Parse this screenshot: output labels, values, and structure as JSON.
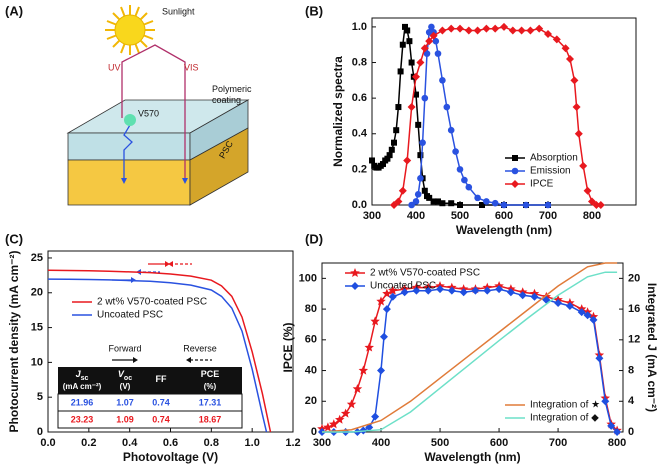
{
  "diagram": {
    "panel": "(A)",
    "labels": {
      "sunlight": "Sunlight",
      "uv": "UV",
      "vis": "VIS",
      "dye": "V570",
      "coating": [
        "Polymeric",
        "coating"
      ],
      "device": "PSC"
    }
  },
  "chart_data": [
    {
      "type": "line",
      "panel": "(B)",
      "x_label": "Wavelength (nm)",
      "y_label": "Normalized spectra",
      "xlim": [
        300,
        900
      ],
      "xticks": [
        300,
        400,
        500,
        600,
        700,
        800
      ],
      "ylim": [
        0,
        1.05
      ],
      "yticks": [
        {
          "value": 0,
          "label": "0.0"
        },
        0.2,
        0.4,
        0.6,
        0.8,
        {
          "value": 1,
          "label": "1.0"
        }
      ],
      "legend": "lower right",
      "series": [
        {
          "name": "Absorption",
          "color": "#000000",
          "marker": "square",
          "x": [
            300,
            305,
            310,
            315,
            320,
            325,
            330,
            335,
            340,
            345,
            350,
            355,
            360,
            365,
            370,
            375,
            380,
            385,
            390,
            395,
            400,
            405,
            410,
            415,
            420,
            425,
            430,
            440,
            450,
            460,
            480,
            500,
            550,
            600,
            650,
            700
          ],
          "values": [
            0.25,
            0.22,
            0.21,
            0.21,
            0.22,
            0.23,
            0.25,
            0.26,
            0.28,
            0.31,
            0.35,
            0.42,
            0.55,
            0.75,
            0.9,
            1.0,
            0.98,
            0.92,
            0.8,
            0.72,
            0.62,
            0.45,
            0.28,
            0.15,
            0.08,
            0.05,
            0.04,
            0.02,
            0.02,
            0.01,
            0.01,
            0,
            0,
            0,
            0,
            0
          ]
        },
        {
          "name": "Emission",
          "color": "#2a52e0",
          "marker": "circle",
          "x": [
            390,
            400,
            405,
            410,
            415,
            420,
            425,
            430,
            435,
            440,
            445,
            450,
            460,
            470,
            480,
            490,
            500,
            510,
            520,
            540,
            560,
            580,
            600,
            650,
            700
          ],
          "values": [
            0,
            0.02,
            0.06,
            0.15,
            0.35,
            0.6,
            0.85,
            0.97,
            1.0,
            0.97,
            0.92,
            0.85,
            0.7,
            0.55,
            0.42,
            0.3,
            0.2,
            0.14,
            0.1,
            0.04,
            0.02,
            0.01,
            0,
            0,
            0
          ]
        },
        {
          "name": "IPCE",
          "color": "#e8191f",
          "marker": "diamond",
          "x": [
            350,
            360,
            370,
            380,
            390,
            400,
            410,
            420,
            430,
            440,
            460,
            480,
            500,
            520,
            540,
            560,
            580,
            600,
            620,
            640,
            660,
            680,
            700,
            720,
            740,
            750,
            760,
            765,
            770,
            780,
            790,
            800,
            810,
            820
          ],
          "values": [
            0,
            0.02,
            0.08,
            0.25,
            0.55,
            0.72,
            0.8,
            0.88,
            0.92,
            0.95,
            0.98,
            0.99,
            0.99,
            0.98,
            0.98,
            0.99,
            0.99,
            1.0,
            0.98,
            0.98,
            0.98,
            0.99,
            0.96,
            0.93,
            0.88,
            0.82,
            0.7,
            0.55,
            0.4,
            0.22,
            0.08,
            0.02,
            0,
            0
          ]
        }
      ]
    },
    {
      "type": "line",
      "panel": "(C)",
      "x_label": "Photovoltage (V)",
      "y_label": "Photocurrent density (mA cm⁻²)",
      "xlim": [
        0,
        1.2
      ],
      "xticks": [
        {
          "value": 0,
          "label": "0.0"
        },
        0.2,
        0.4,
        0.6,
        0.8,
        {
          "value": 1,
          "label": "1.0"
        },
        1.2
      ],
      "ylim": [
        0,
        26
      ],
      "yticks": [
        0,
        5,
        10,
        15,
        20,
        25
      ],
      "legend": "center left",
      "series": [
        {
          "name": "2 wt% V570-coated PSC",
          "color": "#e8191f",
          "marker": "none",
          "x": [
            0,
            0.1,
            0.2,
            0.3,
            0.4,
            0.5,
            0.6,
            0.7,
            0.8,
            0.85,
            0.9,
            0.95,
            1.0,
            1.05,
            1.09
          ],
          "values": [
            23.23,
            23.2,
            23.15,
            23.1,
            23.0,
            22.9,
            22.7,
            22.4,
            21.8,
            21.0,
            19.5,
            16.5,
            11.5,
            5.5,
            0
          ]
        },
        {
          "name": "Uncoated PSC",
          "color": "#2a52e0",
          "marker": "none",
          "x": [
            0,
            0.1,
            0.2,
            0.3,
            0.4,
            0.5,
            0.6,
            0.7,
            0.8,
            0.85,
            0.9,
            0.95,
            1.0,
            1.05,
            1.07
          ],
          "values": [
            21.96,
            21.95,
            21.9,
            21.85,
            21.75,
            21.65,
            21.45,
            21.1,
            20.4,
            19.5,
            17.8,
            14.5,
            9.0,
            2.5,
            0
          ]
        }
      ],
      "annotations": {
        "forward": "Forward",
        "reverse": "Reverse"
      },
      "table": {
        "header": [
          {
            "symbol": "J",
            "sub": "sc",
            "unit": "(mA cm⁻²)"
          },
          {
            "symbol": "V",
            "sub": "oc",
            "unit": "(V)"
          },
          {
            "symbol": "FF"
          },
          {
            "symbol": "PCE",
            "unit": "(%)"
          }
        ],
        "rows": [
          [
            21.96,
            1.07,
            0.74,
            17.31
          ],
          [
            23.23,
            1.09,
            0.74,
            18.67
          ]
        ],
        "row_colors": [
          "#2a52e0",
          "#e8191f"
        ]
      }
    },
    {
      "type": "line",
      "panel": "(D)",
      "x_label": "Wavelength (nm)",
      "y_label": "IPCE (%)",
      "y2_label": "Integrated J (mA cm⁻²)",
      "xlim": [
        300,
        810
      ],
      "xticks": [
        300,
        400,
        500,
        600,
        700,
        800
      ],
      "ylim": [
        0,
        110
      ],
      "yticks": [
        0,
        20,
        40,
        60,
        80,
        100
      ],
      "y2lim": [
        0,
        22
      ],
      "y2ticks": [
        0,
        4,
        8,
        12,
        16,
        20
      ],
      "series": [
        {
          "name": "2 wt% V570-coated PSC",
          "color": "#e8191f",
          "marker": "star",
          "x": [
            300,
            310,
            320,
            330,
            340,
            350,
            360,
            370,
            380,
            390,
            400,
            410,
            420,
            440,
            460,
            480,
            500,
            520,
            540,
            560,
            580,
            600,
            620,
            640,
            660,
            680,
            700,
            720,
            740,
            750,
            760,
            770,
            780,
            790,
            800
          ],
          "values": [
            2,
            3,
            5,
            8,
            12,
            18,
            28,
            40,
            55,
            72,
            85,
            90,
            92,
            93,
            94,
            94,
            95,
            94,
            93,
            93,
            94,
            95,
            93,
            91,
            90,
            88,
            86,
            84,
            80,
            78,
            75,
            50,
            22,
            5,
            1
          ]
        },
        {
          "name": "Uncoated PSC",
          "color": "#1f4fe0",
          "marker": "diamond",
          "x": [
            300,
            320,
            340,
            360,
            370,
            380,
            390,
            400,
            405,
            410,
            420,
            440,
            460,
            480,
            500,
            520,
            540,
            560,
            580,
            600,
            620,
            640,
            660,
            680,
            700,
            720,
            740,
            750,
            760,
            770,
            780,
            790,
            800
          ],
          "values": [
            0,
            0,
            0,
            0,
            1,
            3,
            10,
            40,
            62,
            80,
            88,
            91,
            92,
            92,
            93,
            92,
            91,
            92,
            92,
            93,
            91,
            89,
            88,
            86,
            84,
            82,
            78,
            76,
            73,
            48,
            20,
            4,
            0
          ]
        },
        {
          "name": "Integration of ★",
          "color": "#e07b39",
          "marker": "none",
          "axis": "y2",
          "x": [
            300,
            350,
            400,
            450,
            500,
            550,
            600,
            650,
            700,
            750,
            780,
            800
          ],
          "values": [
            0,
            0.3,
            1.5,
            4,
            7,
            10,
            13,
            16,
            19,
            21.5,
            22,
            22
          ]
        },
        {
          "name": "Integration of ◆",
          "color": "#6de0c8",
          "marker": "none",
          "axis": "y2",
          "x": [
            300,
            350,
            400,
            450,
            500,
            550,
            600,
            650,
            700,
            750,
            780,
            800
          ],
          "values": [
            0,
            0,
            0.3,
            2.6,
            5.7,
            8.8,
            11.9,
            14.9,
            17.8,
            20.2,
            20.8,
            20.8
          ]
        }
      ]
    }
  ]
}
